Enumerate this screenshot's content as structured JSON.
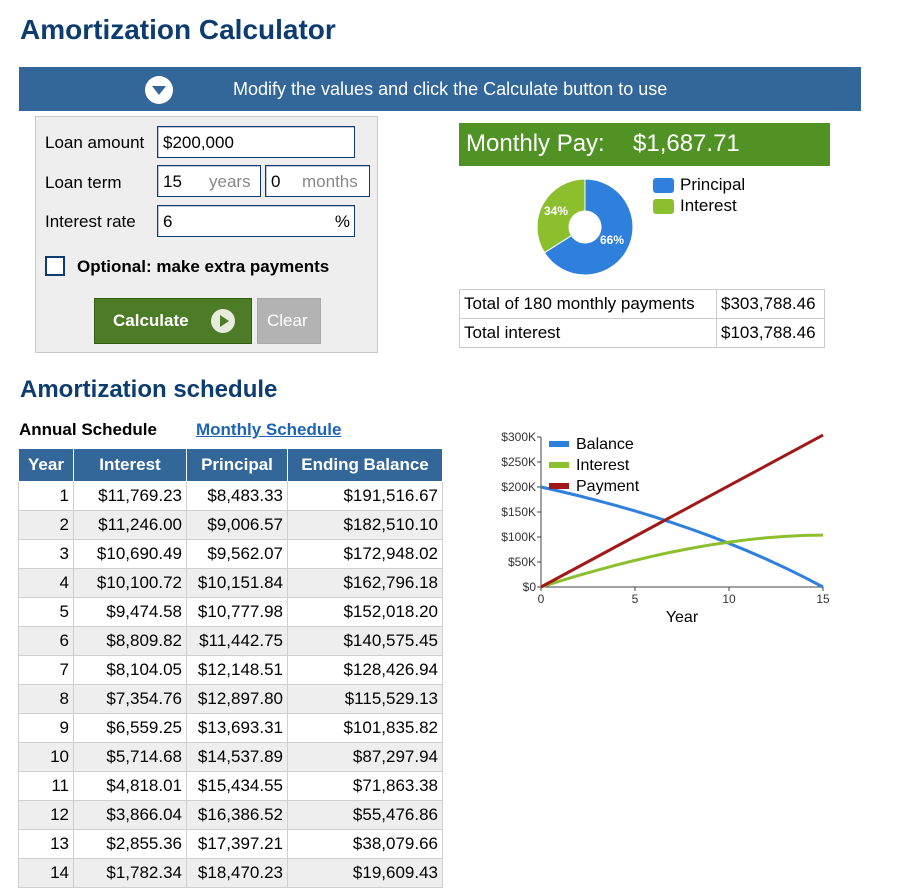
{
  "title": "Amortization Calculator",
  "banner": {
    "text": "Modify the values and click the Calculate button to use",
    "icon": "chevron-down-icon"
  },
  "form": {
    "loan_amount_label": "Loan amount",
    "loan_amount_value": "$200,000",
    "loan_term_label": "Loan term",
    "term_years_value": "15",
    "term_years_unit": "years",
    "term_months_value": "0",
    "term_months_unit": "months",
    "interest_rate_label": "Interest rate",
    "interest_rate_value": "6",
    "interest_rate_unit": "%",
    "extra_payments_label": "Optional: make extra payments",
    "extra_payments_checked": false,
    "calculate_label": "Calculate",
    "clear_label": "Clear"
  },
  "result": {
    "monthly_pay_label": "Monthly Pay:",
    "monthly_pay_value": "$1,687.71",
    "pie": {
      "slices": [
        {
          "name": "Principal",
          "percent": 66,
          "label": "66%",
          "color": "#2f7fdc"
        },
        {
          "name": "Interest",
          "percent": 34,
          "label": "34%",
          "color": "#8cbf2e"
        }
      ]
    },
    "totals": [
      {
        "label": "Total of 180 monthly payments",
        "value": "$303,788.46"
      },
      {
        "label": "Total interest",
        "value": "$103,788.46"
      }
    ]
  },
  "schedule": {
    "heading": "Amortization schedule",
    "tab_annual": "Annual Schedule",
    "tab_monthly": "Monthly Schedule",
    "columns": [
      "Year",
      "Interest",
      "Principal",
      "Ending Balance"
    ],
    "rows": [
      [
        "1",
        "$11,769.23",
        "$8,483.33",
        "$191,516.67"
      ],
      [
        "2",
        "$11,246.00",
        "$9,006.57",
        "$182,510.10"
      ],
      [
        "3",
        "$10,690.49",
        "$9,562.07",
        "$172,948.02"
      ],
      [
        "4",
        "$10,100.72",
        "$10,151.84",
        "$162,796.18"
      ],
      [
        "5",
        "$9,474.58",
        "$10,777.98",
        "$152,018.20"
      ],
      [
        "6",
        "$8,809.82",
        "$11,442.75",
        "$140,575.45"
      ],
      [
        "7",
        "$8,104.05",
        "$12,148.51",
        "$128,426.94"
      ],
      [
        "8",
        "$7,354.76",
        "$12,897.80",
        "$115,529.13"
      ],
      [
        "9",
        "$6,559.25",
        "$13,693.31",
        "$101,835.82"
      ],
      [
        "10",
        "$5,714.68",
        "$14,537.89",
        "$87,297.94"
      ],
      [
        "11",
        "$4,818.01",
        "$15,434.55",
        "$71,863.38"
      ],
      [
        "12",
        "$3,866.04",
        "$16,386.52",
        "$55,476.86"
      ],
      [
        "13",
        "$2,855.36",
        "$17,397.21",
        "$38,079.66"
      ],
      [
        "14",
        "$1,782.34",
        "$18,470.23",
        "$19,609.43"
      ]
    ]
  },
  "chart_data": {
    "type": "line",
    "xlabel": "Year",
    "xlim": [
      0,
      15
    ],
    "ylim": [
      0,
      300000
    ],
    "x_ticks": [
      {
        "value": 0,
        "label": "0"
      },
      {
        "value": 5,
        "label": "5"
      },
      {
        "value": 10,
        "label": "10"
      },
      {
        "value": 15,
        "label": "15"
      }
    ],
    "y_ticks": [
      {
        "value": 0,
        "label": "$0"
      },
      {
        "value": 50000,
        "label": "$50K"
      },
      {
        "value": 100000,
        "label": "$100K"
      },
      {
        "value": 150000,
        "label": "$150K"
      },
      {
        "value": 200000,
        "label": "$200K"
      },
      {
        "value": 250000,
        "label": "$250K"
      },
      {
        "value": 300000,
        "label": "$300K"
      }
    ],
    "legend_position": "top-left",
    "grid": false,
    "x": [
      0,
      1,
      2,
      3,
      4,
      5,
      6,
      7,
      8,
      9,
      10,
      11,
      12,
      13,
      14,
      15
    ],
    "series": [
      {
        "name": "Balance",
        "color": "#2f7fdc",
        "values": [
          200000,
          191516.67,
          182510.1,
          172948.02,
          162796.18,
          152018.2,
          140575.45,
          128426.94,
          115529.13,
          101835.82,
          87297.94,
          71863.38,
          55476.86,
          38079.66,
          19609.43,
          0
        ]
      },
      {
        "name": "Interest",
        "color": "#8cbf2e",
        "values": [
          0,
          11769.23,
          23015.23,
          33705.72,
          43806.44,
          53281.02,
          62090.84,
          70194.89,
          77549.65,
          84108.9,
          89823.58,
          94641.59,
          98507.63,
          101362.99,
          103145.33,
          103788.46
        ]
      },
      {
        "name": "Payment",
        "color": "#a01818",
        "values": [
          0,
          20252.56,
          40505.12,
          60757.69,
          81010.25,
          101262.81,
          121515.37,
          141767.93,
          162020.49,
          182273.06,
          202525.62,
          222778.18,
          243030.74,
          263283.3,
          283535.86,
          303788.46
        ]
      }
    ]
  }
}
